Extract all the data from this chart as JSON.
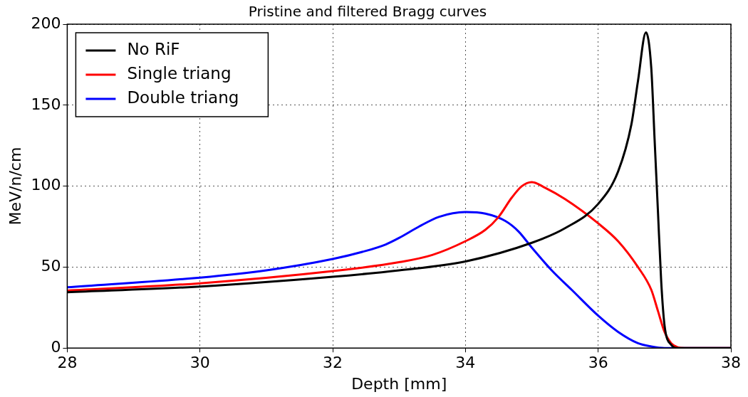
{
  "chart_data": {
    "type": "line",
    "title": "Pristine and filtered Bragg curves",
    "xlabel": "Depth [mm]",
    "ylabel": "MeV/n/cm",
    "xlim": [
      28,
      38
    ],
    "xticks": [
      28,
      30,
      32,
      34,
      36,
      38
    ],
    "ylim": [
      0,
      200
    ],
    "yticks": [
      0,
      50,
      100,
      150,
      200
    ],
    "grid": true,
    "legend": "top left",
    "marker": "none",
    "line_style": "solid",
    "series": [
      {
        "name": "No RiF",
        "color": "#000000",
        "x": [
          28,
          30,
          32,
          33,
          34,
          35,
          35.5,
          36,
          36.3,
          36.5,
          36.6,
          36.72,
          36.8,
          36.85,
          36.9,
          36.95,
          37,
          37.1,
          37.2,
          38
        ],
        "values": [
          34.5,
          38,
          44,
          48,
          53.5,
          65,
          74,
          89,
          109,
          138,
          165,
          195,
          173,
          129,
          85,
          41,
          14,
          2,
          0,
          0
        ]
      },
      {
        "name": "Single triang",
        "color": "#ff0000",
        "x": [
          28,
          30,
          32,
          33,
          33.5,
          34,
          34.3,
          34.5,
          34.7,
          34.85,
          35,
          35.2,
          35.5,
          36,
          36.3,
          36.6,
          36.8,
          36.9,
          37,
          37.1,
          37.2,
          37.3,
          38
        ],
        "values": [
          35.5,
          40,
          47.5,
          53,
          57.5,
          66,
          73,
          81,
          93,
          100,
          102.5,
          99,
          92,
          77,
          66,
          50,
          36,
          23,
          10,
          3,
          0.5,
          0,
          0
        ]
      },
      {
        "name": "Double triang",
        "color": "#0000ff",
        "x": [
          28,
          30,
          31,
          32,
          32.5,
          32.8,
          33,
          33.3,
          33.6,
          34,
          34.3,
          34.6,
          34.8,
          35,
          35.3,
          35.6,
          36,
          36.3,
          36.6,
          36.8,
          37,
          38
        ],
        "values": [
          37.5,
          43.5,
          48,
          55,
          60,
          64,
          68,
          75,
          81,
          84,
          83,
          78.5,
          72,
          62,
          48,
          36,
          20,
          10,
          3,
          1,
          0,
          0
        ]
      }
    ]
  }
}
